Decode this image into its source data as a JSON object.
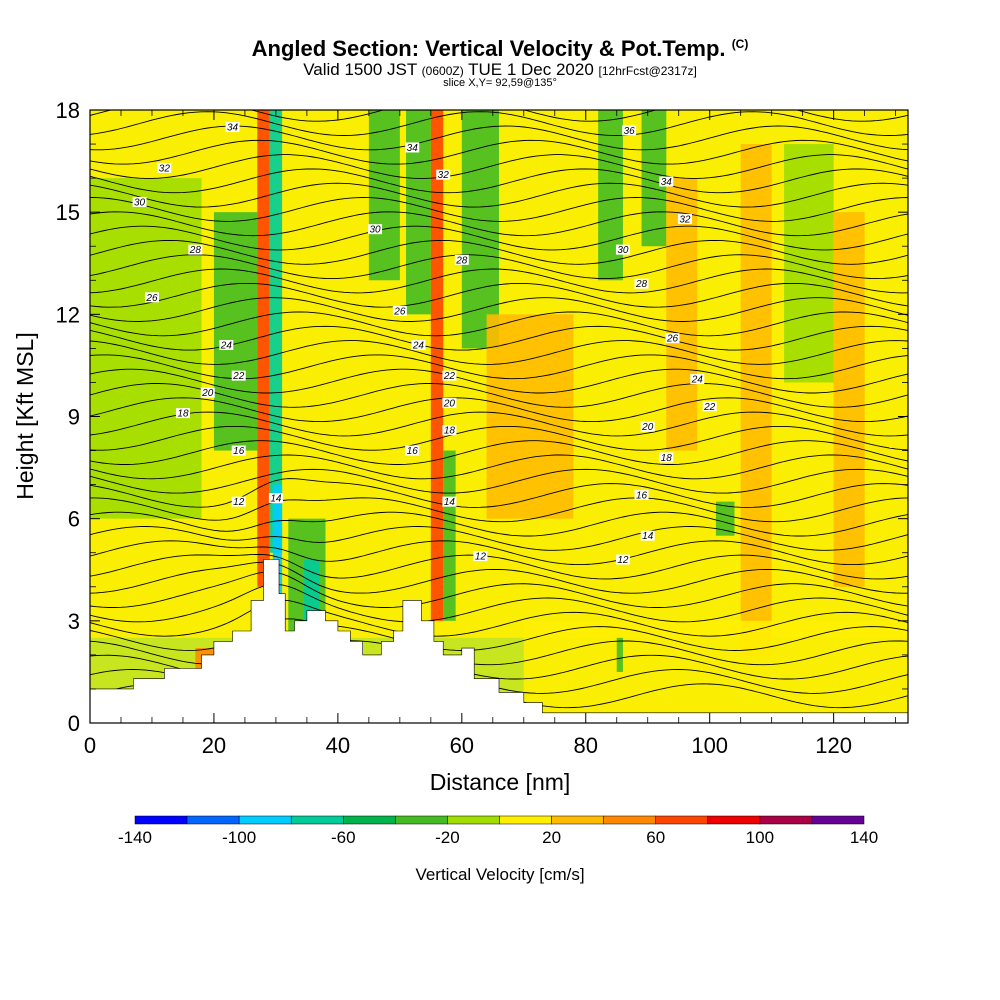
{
  "header": {
    "title": "Angled Section: Vertical Velocity & Pot.Temp.",
    "title_mark": "(C)",
    "valid_prefix": "Valid 1500 JST",
    "valid_utc": "(0600Z)",
    "valid_date": "TUE 1 Dec 2020",
    "forecast": "[12hrFcst@2317z]",
    "slice": "slice X,Y= 92,59@135°"
  },
  "chart_data": {
    "type": "heatmap",
    "xlabel": "Distance [nm]",
    "ylabel": "Height [Kft MSL]",
    "xlim": [
      0,
      132
    ],
    "ylim": [
      0,
      18
    ],
    "xticks": [
      "0",
      "20",
      "40",
      "60",
      "80",
      "100",
      "120"
    ],
    "yticks": [
      "0",
      "3",
      "6",
      "9",
      "12",
      "15",
      "18"
    ],
    "colorbar": {
      "title": "Vertical Velocity [cm/s]",
      "min": -140,
      "max": 140,
      "tick_labels": [
        "-140",
        "-100",
        "-60",
        "-20",
        "20",
        "60",
        "100",
        "140"
      ],
      "colors": [
        "#0000ff",
        "#0066ff",
        "#00ccff",
        "#00cc99",
        "#00b34a",
        "#44bb22",
        "#a0dd00",
        "#ffee00",
        "#ffbb00",
        "#ff8800",
        "#ff4400",
        "#ee0000",
        "#aa0044",
        "#660099"
      ]
    },
    "background_color": "#c8e620",
    "terrain": {
      "x": [
        0,
        7,
        7,
        12,
        12,
        18,
        18,
        20,
        20,
        23,
        23,
        26,
        26,
        28,
        28,
        30.5,
        30.5,
        31.5,
        31.5,
        33,
        33,
        35,
        35,
        38,
        38,
        40,
        40,
        42,
        42,
        44,
        44,
        47,
        47,
        49,
        49,
        50.5,
        50.5,
        53.5,
        53.5,
        55.5,
        55.5,
        57,
        57,
        60,
        60,
        62,
        62,
        66,
        66,
        70,
        70,
        73,
        73,
        132
      ],
      "y": [
        1.0,
        1.0,
        1.3,
        1.3,
        1.6,
        1.6,
        2.0,
        2.0,
        2.4,
        2.4,
        2.7,
        2.7,
        3.6,
        3.6,
        4.8,
        4.8,
        3.8,
        3.8,
        2.7,
        2.7,
        3.0,
        3.0,
        3.3,
        3.3,
        3.0,
        3.0,
        2.7,
        2.7,
        2.4,
        2.4,
        2.0,
        2.0,
        2.4,
        2.4,
        2.7,
        2.7,
        3.6,
        3.6,
        3.0,
        3.0,
        2.4,
        2.4,
        2.0,
        2.0,
        2.2,
        2.2,
        1.3,
        1.3,
        0.9,
        0.9,
        0.6,
        0.6,
        0.3,
        0.3
      ]
    },
    "shading": [
      {
        "x": [
          17,
          30
        ],
        "y": [
          0.3,
          2.2
        ],
        "value": 40
      },
      {
        "x": [
          0,
          132
        ],
        "y": [
          2.5,
          18
        ],
        "value": 15
      },
      {
        "x": [
          0,
          18
        ],
        "y": [
          6,
          16
        ],
        "value": -10
      },
      {
        "x": [
          20,
          27
        ],
        "y": [
          8,
          15
        ],
        "value": -35
      },
      {
        "x": [
          27,
          29
        ],
        "y": [
          4,
          18
        ],
        "value": 70
      },
      {
        "x": [
          29,
          31
        ],
        "y": [
          5,
          18
        ],
        "value": -70
      },
      {
        "x": [
          29.5,
          31
        ],
        "y": [
          3.5,
          7
        ],
        "value": -100
      },
      {
        "x": [
          32,
          38
        ],
        "y": [
          2.5,
          6
        ],
        "value": -30
      },
      {
        "x": [
          34.5,
          37
        ],
        "y": [
          2.8,
          4.8
        ],
        "value": -80
      },
      {
        "x": [
          45,
          50
        ],
        "y": [
          13,
          18
        ],
        "value": -30
      },
      {
        "x": [
          51,
          55
        ],
        "y": [
          12,
          18
        ],
        "value": -40
      },
      {
        "x": [
          55,
          57
        ],
        "y": [
          3,
          18
        ],
        "value": 70
      },
      {
        "x": [
          57,
          59
        ],
        "y": [
          3,
          8
        ],
        "value": -40
      },
      {
        "x": [
          60,
          66
        ],
        "y": [
          11,
          18
        ],
        "value": -30
      },
      {
        "x": [
          64,
          78
        ],
        "y": [
          6,
          12
        ],
        "value": 25
      },
      {
        "x": [
          82,
          86
        ],
        "y": [
          13,
          18
        ],
        "value": -30
      },
      {
        "x": [
          89,
          93
        ],
        "y": [
          14,
          18
        ],
        "value": -40
      },
      {
        "x": [
          93,
          98
        ],
        "y": [
          8,
          16
        ],
        "value": 30
      },
      {
        "x": [
          101,
          104
        ],
        "y": [
          5.5,
          6.5
        ],
        "value": -40
      },
      {
        "x": [
          105,
          110
        ],
        "y": [
          2,
          17
        ],
        "value": 25
      },
      {
        "x": [
          112,
          120
        ],
        "y": [
          10,
          17
        ],
        "value": -20
      },
      {
        "x": [
          120,
          125
        ],
        "y": [
          4,
          15
        ],
        "value": 30
      },
      {
        "x": [
          70,
          132
        ],
        "y": [
          0.3,
          3
        ],
        "value": 5
      },
      {
        "x": [
          85,
          86
        ],
        "y": [
          1.5,
          2.5
        ],
        "value": -40
      }
    ],
    "contour_labels": [
      {
        "value": "12",
        "x": 24,
        "y": 6.5
      },
      {
        "value": "14",
        "x": 30,
        "y": 6.6
      },
      {
        "value": "16",
        "x": 24,
        "y": 8.0
      },
      {
        "value": "18",
        "x": 15,
        "y": 9.1
      },
      {
        "value": "20",
        "x": 19,
        "y": 9.7
      },
      {
        "value": "22",
        "x": 24,
        "y": 10.2
      },
      {
        "value": "24",
        "x": 22,
        "y": 11.1
      },
      {
        "value": "26",
        "x": 10,
        "y": 12.5
      },
      {
        "value": "28",
        "x": 17,
        "y": 13.9
      },
      {
        "value": "30",
        "x": 8,
        "y": 15.3
      },
      {
        "value": "32",
        "x": 12,
        "y": 16.3
      },
      {
        "value": "34",
        "x": 23,
        "y": 17.5
      },
      {
        "value": "16",
        "x": 52,
        "y": 8.0
      },
      {
        "value": "18",
        "x": 58,
        "y": 8.6
      },
      {
        "value": "20",
        "x": 58,
        "y": 9.4
      },
      {
        "value": "22",
        "x": 58,
        "y": 10.2
      },
      {
        "value": "24",
        "x": 53,
        "y": 11.1
      },
      {
        "value": "26",
        "x": 50,
        "y": 12.1
      },
      {
        "value": "28",
        "x": 60,
        "y": 13.6
      },
      {
        "value": "30",
        "x": 46,
        "y": 14.5
      },
      {
        "value": "32",
        "x": 57,
        "y": 16.1
      },
      {
        "value": "34",
        "x": 52,
        "y": 16.9
      },
      {
        "value": "14",
        "x": 58,
        "y": 6.5
      },
      {
        "value": "12",
        "x": 63,
        "y": 4.9
      },
      {
        "value": "12",
        "x": 86,
        "y": 4.8
      },
      {
        "value": "14",
        "x": 90,
        "y": 5.5
      },
      {
        "value": "16",
        "x": 89,
        "y": 6.7
      },
      {
        "value": "18",
        "x": 93,
        "y": 7.8
      },
      {
        "value": "20",
        "x": 90,
        "y": 8.7
      },
      {
        "value": "22",
        "x": 100,
        "y": 9.3
      },
      {
        "value": "24",
        "x": 98,
        "y": 10.1
      },
      {
        "value": "26",
        "x": 94,
        "y": 11.3
      },
      {
        "value": "28",
        "x": 89,
        "y": 12.9
      },
      {
        "value": "30",
        "x": 86,
        "y": 13.9
      },
      {
        "value": "32",
        "x": 96,
        "y": 14.8
      },
      {
        "value": "34",
        "x": 93,
        "y": 15.9
      },
      {
        "value": "36",
        "x": 87,
        "y": 17.4
      }
    ],
    "isentropes_approx_heights": {
      "levels": [
        12,
        14,
        16,
        18,
        20,
        22,
        24,
        26,
        28,
        30,
        32,
        34,
        36
      ],
      "heights": [
        6.3,
        6.9,
        7.8,
        8.7,
        9.5,
        10.2,
        11.0,
        11.9,
        13.0,
        14.1,
        15.3,
        16.6,
        17.6
      ]
    }
  }
}
